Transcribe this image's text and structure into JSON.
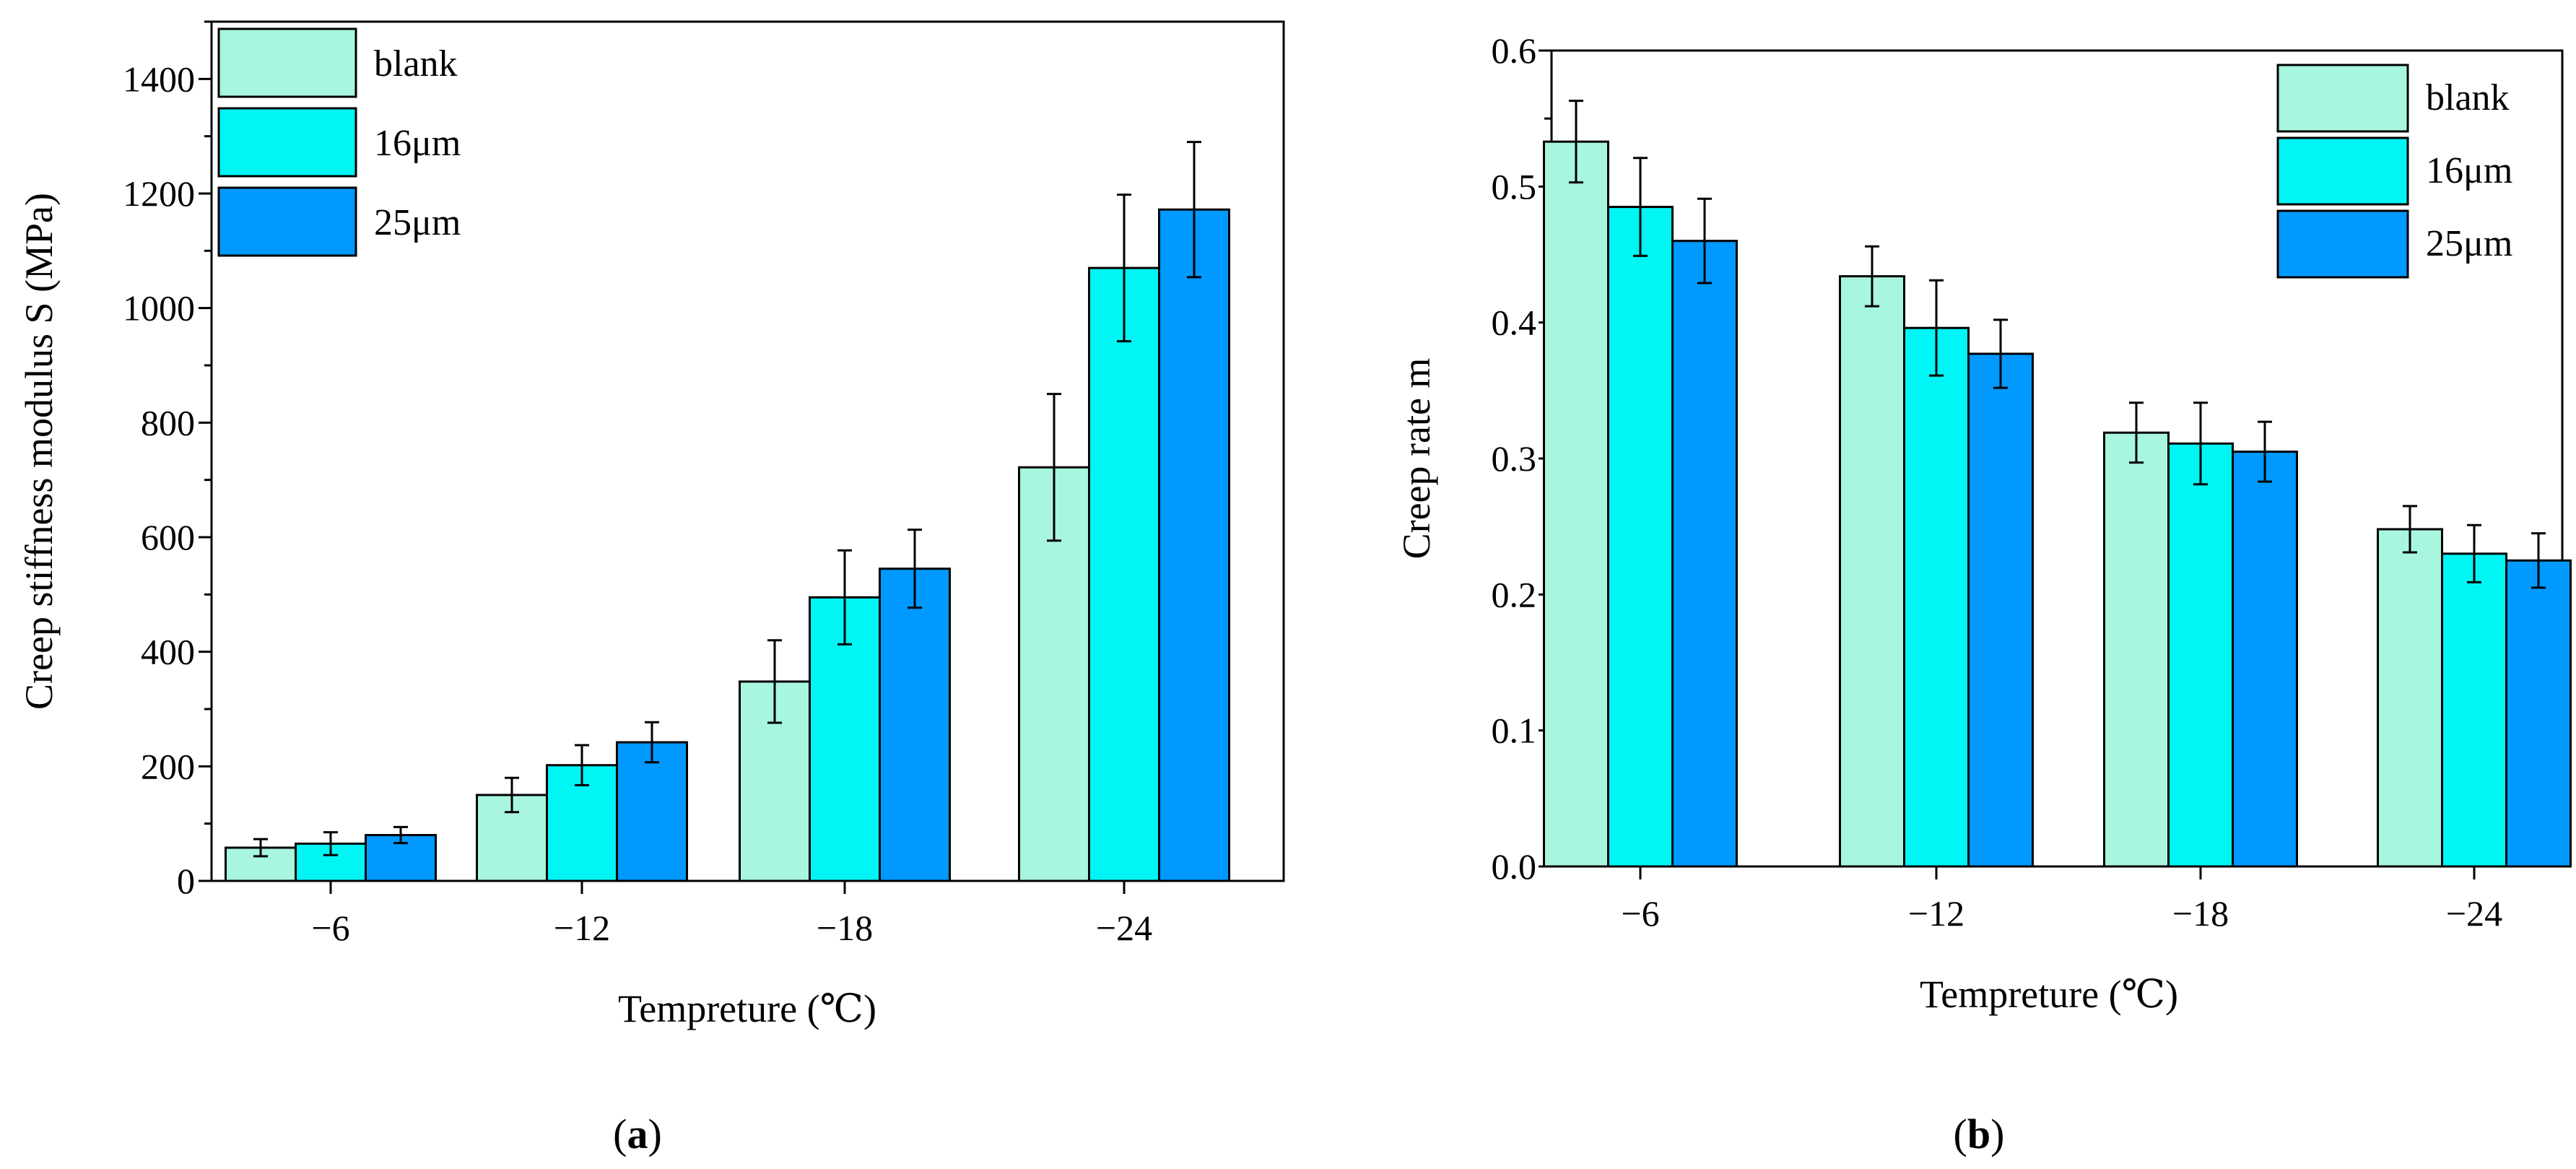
{
  "figure": {
    "panel_labels": [
      {
        "open": "(",
        "letter": "a",
        "close": ")"
      },
      {
        "open": "(",
        "letter": "b",
        "close": ")"
      }
    ]
  },
  "colors": {
    "blank": "#A8F5E0",
    "16um": "#00F5F5",
    "25um": "#0099FF",
    "error_bar": "#000000"
  },
  "chart_data": [
    {
      "type": "bar",
      "panel": "a",
      "categories": [
        "−6",
        "−12",
        "−18",
        "−24"
      ],
      "series": [
        {
          "name": "blank",
          "color_key": "blank",
          "values": [
            58,
            150,
            348,
            722
          ],
          "errors": [
            15,
            30,
            72,
            128
          ]
        },
        {
          "name": "16μm",
          "color_key": "16um",
          "values": [
            65,
            202,
            495,
            1070
          ],
          "errors": [
            20,
            35,
            82,
            128
          ]
        },
        {
          "name": "25μm",
          "color_key": "25um",
          "values": [
            80,
            242,
            545,
            1172
          ],
          "errors": [
            14,
            35,
            68,
            118
          ]
        }
      ],
      "xlabel": "Tempreture (℃)",
      "ylabel": "Creep stiffness modulus S (MPa)",
      "ylim": [
        0,
        1500
      ],
      "yticks": [
        0,
        200,
        400,
        600,
        800,
        1000,
        1200,
        1400
      ],
      "ytick_labels": [
        "0",
        "200",
        "400",
        "600",
        "800",
        "1000",
        "1200",
        "1400"
      ],
      "legend_position": "top-left",
      "grid": false
    },
    {
      "type": "bar",
      "panel": "b",
      "categories": [
        "−6",
        "−12",
        "−18",
        "−24"
      ],
      "series": [
        {
          "name": "blank",
          "color_key": "blank",
          "values": [
            0.533,
            0.434,
            0.319,
            0.248
          ],
          "errors": [
            0.03,
            0.022,
            0.022,
            0.017
          ]
        },
        {
          "name": "16μm",
          "color_key": "16um",
          "values": [
            0.485,
            0.396,
            0.311,
            0.23
          ],
          "errors": [
            0.036,
            0.035,
            0.03,
            0.021
          ]
        },
        {
          "name": "25μm",
          "color_key": "25um",
          "values": [
            0.46,
            0.377,
            0.305,
            0.225
          ],
          "errors": [
            0.031,
            0.025,
            0.022,
            0.02
          ]
        }
      ],
      "xlabel": "Tempreture (℃)",
      "ylabel": "Creep rate m",
      "ylim": [
        0,
        0.6
      ],
      "yticks": [
        0.0,
        0.1,
        0.2,
        0.3,
        0.4,
        0.5,
        0.6
      ],
      "ytick_labels": [
        "0.0",
        "0.1",
        "0.2",
        "0.3",
        "0.4",
        "0.5",
        "0.6"
      ],
      "legend_position": "top-right",
      "grid": false
    }
  ]
}
